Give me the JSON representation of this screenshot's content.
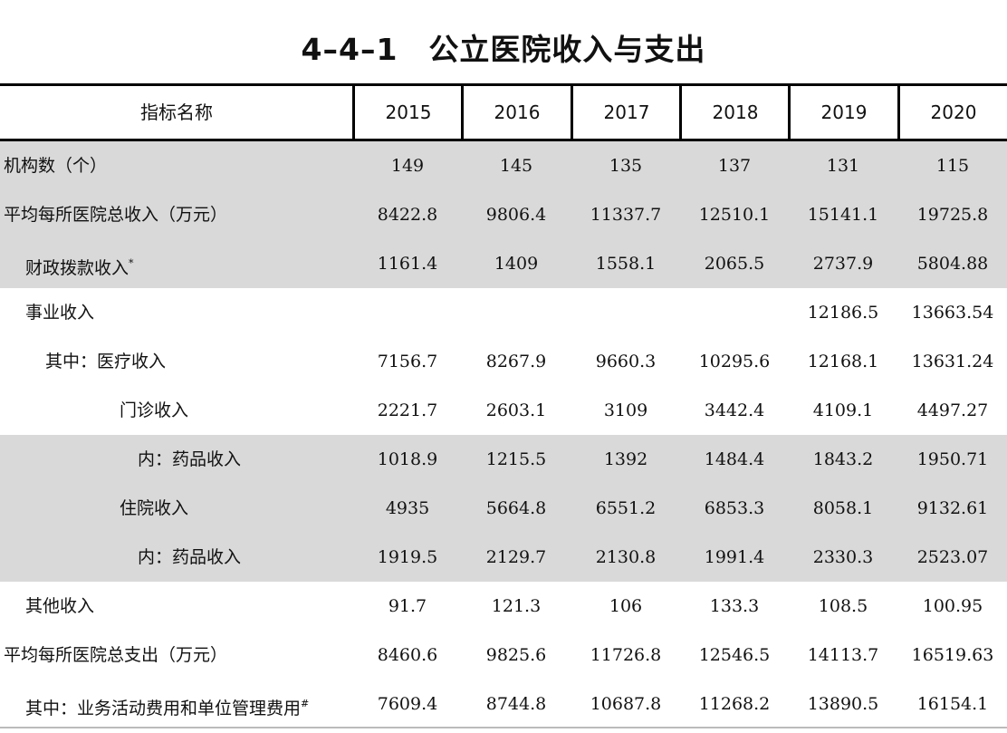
{
  "title": "4–4–1　公立医院收入与支出",
  "table": {
    "header_label": "指标名称",
    "years": [
      "2015",
      "2016",
      "2017",
      "2018",
      "2019",
      "2020"
    ],
    "rows": [
      {
        "label": "机构数（个）",
        "indent": 0,
        "shaded": true,
        "mark": "",
        "values": [
          "149",
          "145",
          "135",
          "137",
          "131",
          "115"
        ]
      },
      {
        "label": "平均每所医院总收入（万元）",
        "indent": 0,
        "shaded": true,
        "mark": "",
        "values": [
          "8422.8",
          "9806.4",
          "11337.7",
          "12510.1",
          "15141.1",
          "19725.8"
        ]
      },
      {
        "label": "财政拨款收入",
        "indent": 1,
        "shaded": true,
        "mark": "*",
        "values": [
          "1161.4",
          "1409",
          "1558.1",
          "2065.5",
          "2737.9",
          "5804.88"
        ]
      },
      {
        "label": "事业收入",
        "indent": 1,
        "shaded": false,
        "mark": "",
        "values": [
          "",
          "",
          "",
          "",
          "12186.5",
          "13663.54"
        ]
      },
      {
        "label": "其中：医疗收入",
        "indent": 2,
        "shaded": false,
        "mark": "",
        "values": [
          "7156.7",
          "8267.9",
          "9660.3",
          "10295.6",
          "12168.1",
          "13631.24"
        ]
      },
      {
        "label": "门诊收入",
        "indent": 3,
        "shaded": false,
        "mark": "",
        "values": [
          "2221.7",
          "2603.1",
          "3109",
          "3442.4",
          "4109.1",
          "4497.27"
        ]
      },
      {
        "label": "内：药品收入",
        "indent": 4,
        "shaded": true,
        "mark": "",
        "values": [
          "1018.9",
          "1215.5",
          "1392",
          "1484.4",
          "1843.2",
          "1950.71"
        ]
      },
      {
        "label": "住院收入",
        "indent": 3,
        "shaded": true,
        "mark": "",
        "values": [
          "4935",
          "5664.8",
          "6551.2",
          "6853.3",
          "8058.1",
          "9132.61"
        ]
      },
      {
        "label": "内：药品收入",
        "indent": 4,
        "shaded": true,
        "mark": "",
        "values": [
          "1919.5",
          "2129.7",
          "2130.8",
          "1991.4",
          "2330.3",
          "2523.07"
        ]
      },
      {
        "label": "其他收入",
        "indent": 1,
        "shaded": false,
        "mark": "",
        "values": [
          "91.7",
          "121.3",
          "106",
          "133.3",
          "108.5",
          "100.95"
        ]
      },
      {
        "label": "平均每所医院总支出（万元）",
        "indent": 0,
        "shaded": false,
        "mark": "",
        "values": [
          "8460.6",
          "9825.6",
          "11726.8",
          "12546.5",
          "14113.7",
          "16519.63"
        ]
      },
      {
        "label": "其中：业务活动费用和单位管理费用",
        "indent": 1,
        "shaded": false,
        "mark": "#",
        "values": [
          "7609.4",
          "8744.8",
          "10687.8",
          "11268.2",
          "13890.5",
          "16154.1"
        ]
      }
    ]
  }
}
